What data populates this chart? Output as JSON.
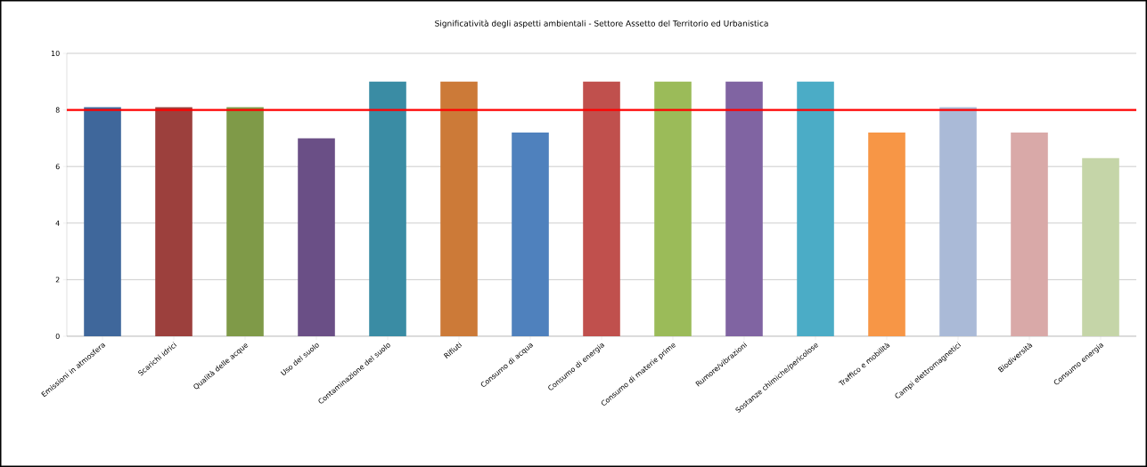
{
  "chart_data": {
    "type": "bar",
    "title": "Significatività degli aspetti ambientali - Settore Assetto del Territorio  ed Urbanistica",
    "categories": [
      "Emissioni in atmosfera",
      "Scarichi idrici",
      "Qualità delle acque",
      "Uso del suolo",
      "Contaminazione del suolo",
      "Rifiuti",
      "Consumo di acqua",
      "Consumo di energia",
      "Consumo di materie prime",
      "Rumore/vibrazioni",
      "Sostanze chimiche/pericolose",
      "Traffico e mobilità",
      "Campi elettromagnetici",
      "Biodiversità",
      "Consumo energia"
    ],
    "values": [
      8.1,
      8.1,
      8.1,
      7,
      9,
      9,
      7.2,
      9,
      9,
      9,
      9,
      7.2,
      8.1,
      7.2,
      6.3
    ],
    "colors": [
      "#3f679b",
      "#9c403d",
      "#7f9a48",
      "#6a4f86",
      "#3a8ca4",
      "#cc7a38",
      "#4f81bd",
      "#c0504d",
      "#9bbb59",
      "#8064a2",
      "#4bacc6",
      "#f79646",
      "#aabad7",
      "#d9a9a8",
      "#c5d5a8"
    ],
    "ylim": [
      0,
      10
    ],
    "yticks": [
      0,
      2,
      4,
      6,
      8,
      10
    ],
    "grid": "y",
    "ref_lines": [
      {
        "axis": "y",
        "value": 8,
        "color": "#ff0000"
      }
    ]
  }
}
